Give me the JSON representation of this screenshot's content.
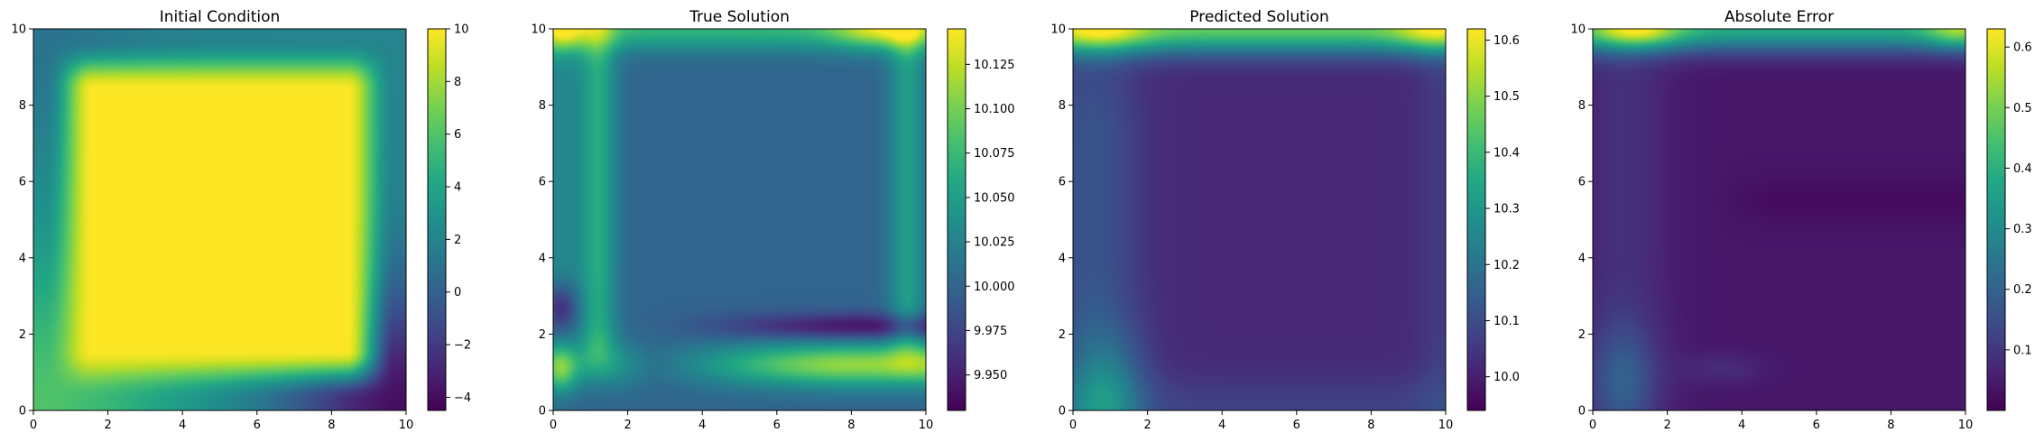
{
  "chart_data": [
    {
      "type": "heatmap",
      "title": "Initial Condition",
      "xlim": [
        0,
        10
      ],
      "ylim": [
        0,
        10
      ],
      "xticks": [
        0,
        2,
        4,
        6,
        8,
        10
      ],
      "yticks": [
        0,
        2,
        4,
        6,
        8,
        10
      ],
      "colormap": "viridis",
      "colorbar": {
        "vmin": -4.5,
        "vmax": 10.0,
        "ticks": [
          10,
          8,
          6,
          4,
          2,
          0,
          -2,
          -4
        ],
        "tick_labels": [
          "10",
          "8",
          "6",
          "4",
          "2",
          "0",
          "−2",
          "−4"
        ]
      },
      "field": {
        "interior": 10.0,
        "interior_range": [
          1,
          9
        ],
        "boundary_value": 2.0,
        "corner_low": [
          [
            10,
            0,
            -4.0
          ]
        ],
        "corner_high": [
          [
            0,
            0,
            8.0
          ],
          [
            0,
            10,
            2.0
          ],
          [
            10,
            10,
            2.0
          ]
        ]
      }
    },
    {
      "type": "heatmap",
      "title": "True Solution",
      "xlim": [
        0,
        10
      ],
      "ylim": [
        0,
        10
      ],
      "xticks": [
        0,
        2,
        4,
        6,
        8,
        10
      ],
      "yticks": [
        0,
        2,
        4,
        6,
        8,
        10
      ],
      "colormap": "viridis",
      "colorbar": {
        "vmin": 9.93,
        "vmax": 10.145,
        "ticks": [
          10.125,
          10.1,
          10.075,
          10.05,
          10.025,
          10.0,
          9.975,
          9.95
        ],
        "tick_labels": [
          "10.125",
          "10.100",
          "10.075",
          "10.050",
          "10.025",
          "10.000",
          "9.975",
          "9.950"
        ]
      },
      "field": {
        "interior": 10.0,
        "stripe_left_x": 1.2,
        "stripe_left_value": 10.06,
        "stripe_bottom_y": 1.2,
        "stripe_bottom_value": 10.11,
        "dark_band_y": 2.2,
        "dark_band_value": 9.94,
        "top_edge_value": 10.07,
        "top_right_hot": 10.14,
        "right_edge_x": 9.5,
        "right_edge_value": 10.05
      }
    },
    {
      "type": "heatmap",
      "title": "Predicted Solution",
      "xlim": [
        0,
        10
      ],
      "ylim": [
        0,
        10
      ],
      "xticks": [
        0,
        2,
        4,
        6,
        8,
        10
      ],
      "yticks": [
        0,
        2,
        4,
        6,
        8,
        10
      ],
      "colormap": "viridis",
      "colorbar": {
        "vmin": 9.94,
        "vmax": 10.62,
        "ticks": [
          10.6,
          10.5,
          10.4,
          10.3,
          10.2,
          10.1,
          10.0
        ],
        "tick_labels": [
          "10.6",
          "10.5",
          "10.4",
          "10.3",
          "10.2",
          "10.1",
          "10.0"
        ]
      },
      "field": {
        "interior": 10.02,
        "left_band_value": 10.12,
        "top_edge_value": 10.45,
        "top_corner_value": 10.6,
        "bottom_left_value": 10.18
      }
    },
    {
      "type": "heatmap",
      "title": "Absolute Error",
      "xlim": [
        0,
        10
      ],
      "ylim": [
        0,
        10
      ],
      "xticks": [
        0,
        2,
        4,
        6,
        8,
        10
      ],
      "yticks": [
        0,
        2,
        4,
        6,
        8,
        10
      ],
      "colormap": "viridis",
      "colorbar": {
        "vmin": 0.0,
        "vmax": 0.63,
        "ticks": [
          0.6,
          0.5,
          0.4,
          0.3,
          0.2,
          0.1
        ],
        "tick_labels": [
          "0.6",
          "0.5",
          "0.4",
          "0.3",
          "0.2",
          "0.1"
        ]
      },
      "field": {
        "interior": 0.04,
        "top_edge_value": 0.38,
        "top_left_hot": 0.6,
        "top_right_hot": 0.55,
        "bottom_left_value": 0.15
      }
    }
  ]
}
